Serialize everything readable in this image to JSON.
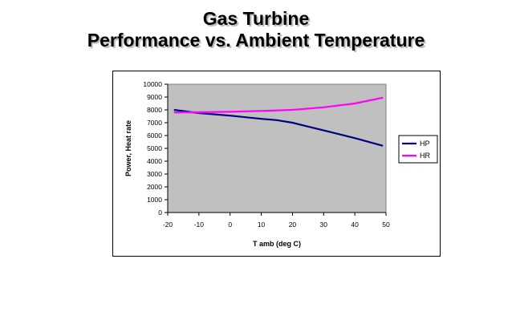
{
  "title": {
    "line1": "Gas Turbine",
    "line2": "Performance vs. Ambient Temperature"
  },
  "chart_data": {
    "type": "line",
    "title": "Gas Turbine Performance vs. Ambient Temperature",
    "xlabel": "T amb (deg C)",
    "ylabel": "Power, Heat rate",
    "xlim": [
      -20,
      50
    ],
    "ylim": [
      0,
      10000
    ],
    "xticks": [
      -20,
      -10,
      0,
      10,
      20,
      30,
      40,
      50
    ],
    "yticks": [
      0,
      1000,
      2000,
      3000,
      4000,
      5000,
      6000,
      7000,
      8000,
      9000,
      10000
    ],
    "grid": false,
    "plot_background": "#c0c0c0",
    "legend": "right",
    "series": [
      {
        "name": "HP",
        "color": "#000080",
        "x": [
          -18,
          -10,
          0,
          10,
          15,
          20,
          30,
          40,
          49
        ],
        "y": [
          8000,
          7750,
          7550,
          7300,
          7200,
          7000,
          6400,
          5800,
          5200
        ]
      },
      {
        "name": "HR",
        "color": "#ff00ff",
        "x": [
          -18,
          -10,
          0,
          10,
          20,
          30,
          40,
          49
        ],
        "y": [
          7800,
          7820,
          7850,
          7920,
          8000,
          8200,
          8500,
          8950
        ]
      }
    ]
  }
}
